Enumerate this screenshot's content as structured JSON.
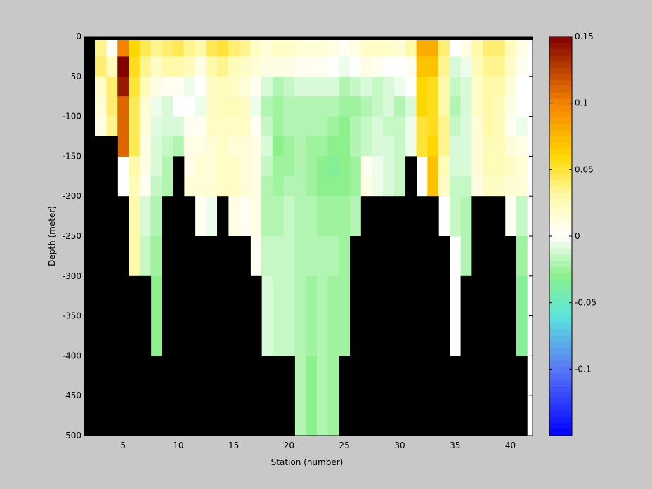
{
  "chart_data": {
    "type": "heatmap",
    "title": "",
    "xlabel": "Station (number)",
    "ylabel": "Depth (meter)",
    "xlim": [
      1.5,
      42
    ],
    "ylim": [
      -500,
      0
    ],
    "x_ticks": [
      5,
      10,
      15,
      20,
      25,
      30,
      35,
      40
    ],
    "y_ticks": [
      0,
      -50,
      -100,
      -150,
      -200,
      -250,
      -300,
      -350,
      -400,
      -450,
      -500
    ],
    "colorbar": {
      "range": [
        -0.15,
        0.15
      ],
      "ticks": [
        "0.15",
        "0.1",
        "0.05",
        "0",
        "-0.05",
        "-0.1"
      ],
      "tick_values": [
        0.15,
        0.1,
        0.05,
        0,
        -0.05,
        -0.1
      ]
    },
    "land_color": "#000000",
    "stations": [
      2,
      3,
      4,
      5,
      6,
      7,
      8,
      9,
      10,
      11,
      12,
      13,
      14,
      15,
      16,
      17,
      18,
      19,
      20,
      21,
      22,
      23,
      24,
      25,
      26,
      27,
      28,
      29,
      30,
      31,
      32,
      33,
      34,
      35,
      36,
      37,
      38,
      39,
      40,
      41
    ],
    "depth_bin_edges": [
      0,
      -25,
      -50,
      -75,
      -100,
      -125,
      -150,
      -175,
      -200,
      -250,
      -300,
      -400,
      -500
    ],
    "max_depth": [
      -125,
      -125,
      -125,
      -200,
      -300,
      -300,
      -400,
      -200,
      -150,
      -200,
      -250,
      -250,
      -200,
      -250,
      -250,
      -300,
      -400,
      -400,
      -400,
      -500,
      -500,
      -500,
      -500,
      -400,
      -250,
      -200,
      -200,
      -200,
      -200,
      -150,
      -200,
      -200,
      -250,
      -400,
      -300,
      -200,
      -200,
      -200,
      -250,
      -400
    ],
    "values": [
      [
        0.04,
        0.045,
        0.03,
        0.02,
        0.015,
        0.003
      ],
      [
        0.035,
        0.04,
        0.02,
        0.015,
        0.01,
        0.003
      ],
      [
        0.005,
        0.025,
        0.04,
        0.04,
        0.035,
        0.03
      ],
      [
        0.1,
        0.15,
        0.14,
        0.11,
        0.11,
        0.11
      ],
      [
        0.06,
        0.055,
        0.05,
        0.045,
        0.045,
        0.045,
        0.03,
        0.025,
        0.03,
        0.03,
        0.03
      ],
      [
        0.045,
        0.035,
        0.025,
        0.015,
        0.015,
        0.01,
        0.01,
        0.005,
        -0.01,
        -0.015,
        -0.02
      ],
      [
        0.035,
        0.02,
        0.01,
        -0.005,
        -0.008,
        -0.01,
        -0.01,
        -0.015,
        -0.02,
        -0.025,
        -0.03
      ],
      [
        0.04,
        0.03,
        0.005,
        -0.01,
        -0.01,
        -0.015,
        -0.02,
        -0.02
      ],
      [
        0.045,
        0.03,
        0.005,
        0.0,
        -0.01,
        -0.02
      ],
      [
        0.035,
        0.025,
        -0.005,
        0.0,
        0.005,
        0.01,
        0.01,
        0.015
      ],
      [
        0.03,
        0.01,
        0.0,
        -0.005,
        0.005,
        0.01,
        0.015,
        0.015,
        0.005
      ],
      [
        0.045,
        0.03,
        0.02,
        0.02,
        0.02,
        0.015,
        0.015,
        0.015,
        -0.005
      ],
      [
        0.05,
        0.035,
        0.025,
        0.025,
        0.02,
        0.02,
        0.02,
        0.02
      ],
      [
        0.04,
        0.025,
        0.02,
        0.025,
        0.02,
        0.015,
        0.02,
        0.02,
        0.01
      ],
      [
        0.035,
        0.02,
        0.015,
        0.02,
        0.02,
        0.015,
        0.015,
        0.015,
        0.005
      ],
      [
        0.02,
        0.015,
        0.005,
        -0.005,
        0.005,
        0.01,
        0.01,
        0.01,
        0.01,
        0.005
      ],
      [
        0.015,
        0.01,
        -0.01,
        -0.02,
        -0.015,
        -0.01,
        -0.015,
        -0.02,
        -0.02,
        -0.015,
        -0.01
      ],
      [
        0.02,
        0.01,
        -0.02,
        -0.025,
        -0.025,
        -0.03,
        -0.025,
        -0.025,
        -0.02,
        -0.015,
        -0.015
      ],
      [
        0.02,
        0.01,
        -0.015,
        -0.02,
        -0.02,
        -0.025,
        -0.025,
        -0.02,
        -0.015,
        -0.015,
        -0.015
      ],
      [
        0.015,
        0.005,
        -0.01,
        -0.02,
        -0.02,
        -0.02,
        -0.02,
        -0.02,
        -0.02,
        -0.02,
        -0.02,
        -0.02
      ],
      [
        0.015,
        0.005,
        -0.01,
        -0.02,
        -0.02,
        -0.025,
        -0.025,
        -0.025,
        -0.02,
        -0.02,
        -0.025,
        -0.03
      ],
      [
        0.015,
        0.005,
        -0.01,
        -0.02,
        -0.02,
        -0.025,
        -0.03,
        -0.03,
        -0.025,
        -0.02,
        -0.02,
        -0.02
      ],
      [
        0.01,
        0.0,
        -0.01,
        -0.02,
        -0.025,
        -0.03,
        -0.035,
        -0.03,
        -0.025,
        -0.02,
        -0.025,
        -0.025
      ],
      [
        0.005,
        -0.005,
        -0.02,
        -0.025,
        -0.03,
        -0.03,
        -0.03,
        -0.03,
        -0.025,
        -0.025,
        -0.025,
        -0.035
      ],
      [
        0.01,
        0.0,
        -0.015,
        -0.025,
        -0.02,
        -0.02,
        -0.025,
        -0.025,
        -0.02,
        -0.02,
        -0.02
      ],
      [
        0.02,
        0.01,
        -0.01,
        -0.02,
        -0.015,
        -0.015,
        0.005,
        0.01,
        0.015
      ],
      [
        0.02,
        0.005,
        -0.015,
        -0.015,
        -0.01,
        -0.01,
        -0.005,
        -0.005
      ],
      [
        0.02,
        0.0,
        -0.01,
        -0.01,
        -0.015,
        -0.01,
        -0.01,
        -0.01
      ],
      [
        0.015,
        0.0,
        -0.005,
        -0.02,
        -0.015,
        -0.015,
        -0.015,
        -0.015
      ],
      [
        0.03,
        0.005,
        0.0,
        -0.01,
        -0.005,
        -0.005,
        -0.005,
        -0.01
      ],
      [
        0.08,
        0.07,
        0.06,
        0.06,
        0.05,
        0.05
      ],
      [
        0.08,
        0.07,
        0.055,
        0.055,
        0.055,
        0.06,
        0.07,
        0.07
      ],
      [
        0.04,
        0.035,
        0.03,
        0.03,
        0.035,
        0.035,
        0.025,
        0.02
      ],
      [
        0.0,
        -0.01,
        -0.015,
        -0.02,
        -0.015,
        -0.01,
        -0.01,
        -0.015,
        -0.015
      ],
      [
        0.01,
        -0.005,
        -0.01,
        -0.01,
        -0.01,
        -0.01,
        -0.01,
        -0.015,
        -0.02,
        -0.02,
        -0.02
      ],
      [
        0.03,
        0.025,
        0.02,
        0.02,
        0.015,
        0.015,
        0.015,
        0.01,
        0.005,
        -0.01
      ],
      [
        0.04,
        0.035,
        0.03,
        0.03,
        0.03,
        0.025,
        0.025,
        0.02
      ],
      [
        0.04,
        0.035,
        0.03,
        0.025,
        0.025,
        0.025,
        0.025,
        0.02
      ],
      [
        0.025,
        0.02,
        0.015,
        0.01,
        0.005,
        0.015,
        0.02,
        0.015,
        0.005
      ],
      [
        0.01,
        0.005,
        0.0,
        0.0,
        -0.005,
        0.01,
        0.015,
        0.015,
        -0.015,
        -0.025,
        -0.035
      ]
    ]
  }
}
